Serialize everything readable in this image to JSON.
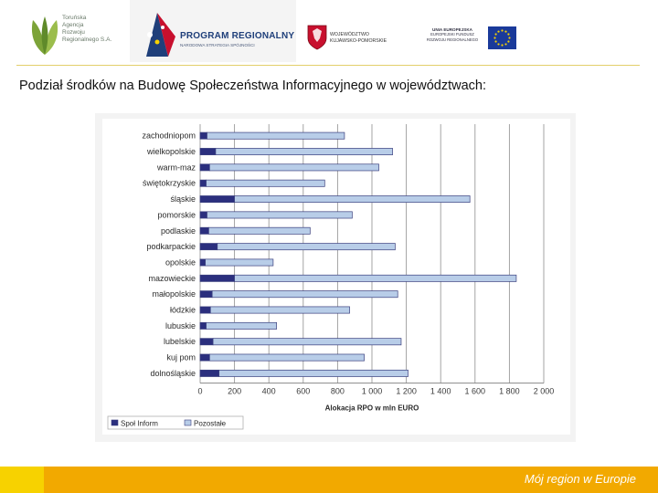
{
  "header": {
    "agency_lines": [
      "Toruńska",
      "Agencja",
      "Rozwoju",
      "Regionalnego S.A."
    ],
    "program_title": "PROGRAM REGIONALNY",
    "program_subtitle": "NARODOWA STRATEGIA SPÓJNOŚCI",
    "voivodeship_lines": [
      "WOJEWÓDZTWO",
      "KUJAWSKO-POMORSKIE"
    ],
    "eu_lines": [
      "UNIA EUROPEJSKA",
      "EUROPEJSKI FUNDUSZ",
      "ROZWOJU REGIONALNEGO"
    ],
    "colors": {
      "program_blue": "#1f3f7a",
      "eu_blue": "#1a3a9a",
      "eu_stars": "#f7d200",
      "leaf_green": "#7ca338"
    }
  },
  "title": "Podział środków na Budowę Społeczeństwa Informacyjnego w województwach:",
  "chart_data": {
    "type": "bar",
    "orientation": "horizontal",
    "stacked": true,
    "categories": [
      "zachodniopom",
      "wielkopolskie",
      "warm-maz",
      "świętokrzyskie",
      "śląskie",
      "pomorskie",
      "podlaskie",
      "podkarpackie",
      "opolskie",
      "mazowieckie",
      "małopolskie",
      "łódzkie",
      "lubuskie",
      "lubelskie",
      "kuj pom",
      "dolnośląskie"
    ],
    "series": [
      {
        "name": "Społ Inform",
        "color": "#2b2f7e",
        "values": [
          40,
          90,
          55,
          35,
          200,
          40,
          50,
          100,
          30,
          200,
          70,
          60,
          35,
          75,
          55,
          110
        ]
      },
      {
        "name": "Pozostałe",
        "color": "#b8cde8",
        "values": [
          800,
          1030,
          985,
          690,
          1370,
          845,
          590,
          1035,
          395,
          1640,
          1080,
          810,
          410,
          1095,
          900,
          1100
        ]
      }
    ],
    "xlabel": "Alokacja RPO w mln EURO",
    "ylabel": "",
    "xlim": [
      0,
      2000
    ],
    "xticks": [
      "0",
      "200",
      "400",
      "600",
      "800",
      "1 000",
      "1 200",
      "1 400",
      "1 600",
      "1 800",
      "2 000"
    ],
    "grid": true,
    "legend_position": "bottom-left"
  },
  "footer": {
    "text": "Mój region w Europie",
    "colors": {
      "main": "#f2a900",
      "left": "#f7d200"
    }
  }
}
